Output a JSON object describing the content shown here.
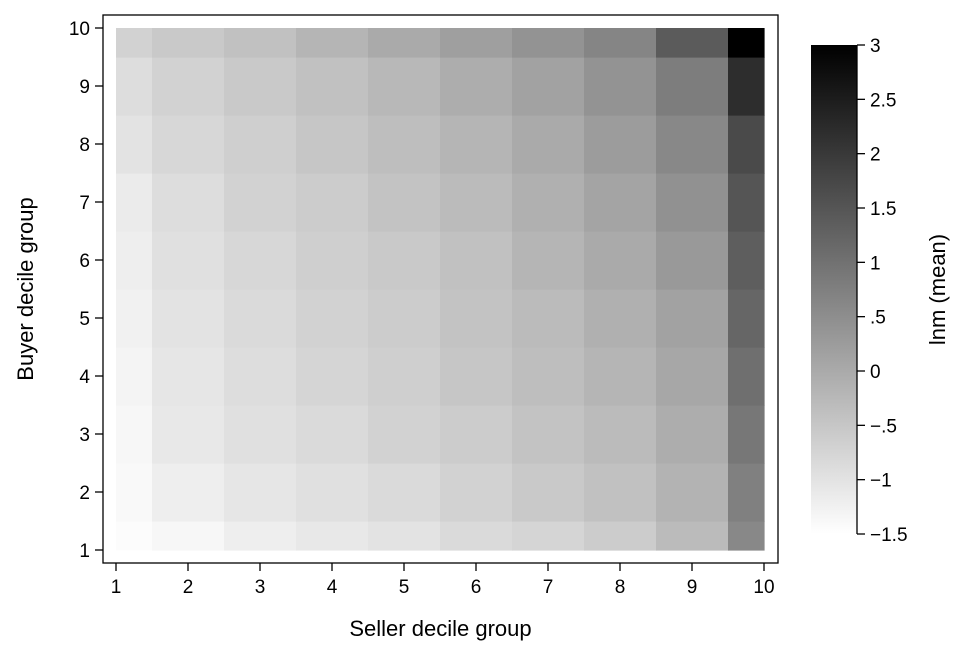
{
  "chart_data": {
    "type": "heatmap",
    "title": "",
    "xlabel": "Seller decile group",
    "ylabel": "Buyer decile group",
    "colorbar_label": "lnm (mean)",
    "x_ticks": [
      "1",
      "2",
      "3",
      "4",
      "5",
      "6",
      "7",
      "8",
      "9",
      "10"
    ],
    "y_ticks": [
      "1",
      "2",
      "3",
      "4",
      "5",
      "6",
      "7",
      "8",
      "9",
      "10"
    ],
    "x_values": [
      1,
      1.5,
      2.5,
      3.5,
      4.5,
      5.5,
      6.5,
      7.5,
      8.5,
      9.5,
      10
    ],
    "y_values": [
      1,
      1.5,
      2.5,
      3.5,
      4.5,
      5.5,
      6.5,
      7.5,
      8.5,
      9.5,
      10
    ],
    "xlim": [
      1,
      10
    ],
    "ylim": [
      1,
      10
    ],
    "colorbar_ticks": [
      3,
      2.5,
      2,
      1.5,
      1,
      0.5,
      0,
      -0.5,
      -1,
      -1.5
    ],
    "colorbar_tick_labels": [
      "3",
      "2.5",
      "2",
      "1.5",
      "1",
      ".5",
      "0",
      "−.5",
      "−1",
      "−1.5"
    ],
    "color_range": [
      -1.5,
      3
    ],
    "colormap": [
      "#ffffff",
      "#000000"
    ],
    "grid": false,
    "z": [
      [
        -1.45,
        -1.35,
        -1.2,
        -1.1,
        -1.0,
        -0.85,
        -0.75,
        -0.6,
        -0.3,
        0.6
      ],
      [
        -1.4,
        -1.2,
        -1.05,
        -0.95,
        -0.85,
        -0.7,
        -0.55,
        -0.4,
        -0.15,
        0.75
      ],
      [
        -1.35,
        -1.1,
        -0.95,
        -0.85,
        -0.7,
        -0.6,
        -0.45,
        -0.3,
        -0.05,
        0.9
      ],
      [
        -1.3,
        -1.05,
        -0.9,
        -0.75,
        -0.65,
        -0.5,
        -0.35,
        -0.2,
        0.05,
        1.05
      ],
      [
        -1.25,
        -1.0,
        -0.85,
        -0.7,
        -0.6,
        -0.45,
        -0.3,
        -0.1,
        0.15,
        1.2
      ],
      [
        -1.2,
        -0.95,
        -0.8,
        -0.65,
        -0.55,
        -0.4,
        -0.2,
        0.0,
        0.3,
        1.35
      ],
      [
        -1.15,
        -0.9,
        -0.7,
        -0.6,
        -0.45,
        -0.3,
        -0.1,
        0.1,
        0.45,
        1.5
      ],
      [
        -1.0,
        -0.8,
        -0.65,
        -0.5,
        -0.35,
        -0.2,
        0.0,
        0.25,
        0.6,
        1.7
      ],
      [
        -0.9,
        -0.7,
        -0.55,
        -0.4,
        -0.25,
        -0.05,
        0.15,
        0.4,
        0.8,
        2.2
      ],
      [
        -0.7,
        -0.55,
        -0.4,
        -0.2,
        0.0,
        0.2,
        0.4,
        0.65,
        1.4,
        3.0
      ]
    ]
  }
}
